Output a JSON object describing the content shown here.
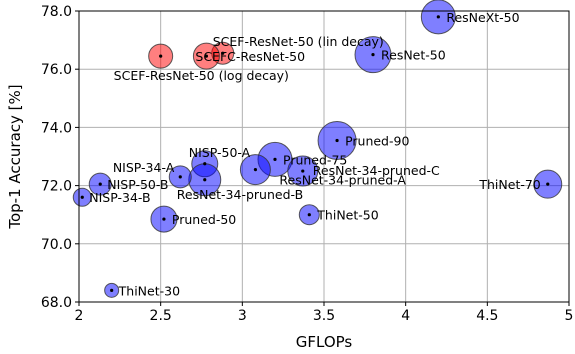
{
  "chart_data": {
    "type": "scatter",
    "xlabel": "GFLOPs",
    "ylabel": "Top-1 Accuracy [%]",
    "xlim": [
      2,
      5
    ],
    "ylim": [
      68,
      78
    ],
    "grid": true,
    "x_ticks": [
      "2",
      "2.5",
      "3",
      "3.5",
      "4",
      "4.5",
      "5"
    ],
    "y_ticks": [
      "68.0",
      "70.0",
      "72.0",
      "74.0",
      "76.0",
      "78.0"
    ],
    "colors": {
      "baseline": "#0000ff",
      "scef": "#ff0000"
    },
    "points": [
      {
        "label": "ResNeXt-50",
        "x": 4.2,
        "y": 77.8,
        "group": "baseline",
        "radius": 17
      },
      {
        "label": "ResNet-50",
        "x": 3.8,
        "y": 76.5,
        "group": "baseline",
        "radius": 18
      },
      {
        "label": "SCEF-ResNet-50 (lin decay)",
        "x": 2.88,
        "y": 76.55,
        "group": "scef",
        "radius": 11
      },
      {
        "label": "SCEFC-ResNet-50",
        "x": 2.78,
        "y": 76.45,
        "group": "scef",
        "radius": 13
      },
      {
        "label": "SCEF-ResNet-50 (log decay)",
        "x": 2.5,
        "y": 76.45,
        "group": "scef",
        "radius": 12
      },
      {
        "label": "Pruned-90",
        "x": 3.58,
        "y": 73.55,
        "group": "baseline",
        "radius": 19
      },
      {
        "label": "NISP-50-A",
        "x": 2.77,
        "y": 72.75,
        "group": "baseline",
        "radius": 13
      },
      {
        "label": "Pruned-75",
        "x": 3.2,
        "y": 72.9,
        "group": "baseline",
        "radius": 17
      },
      {
        "label": "ResNet-34-pruned-C",
        "x": 3.37,
        "y": 72.5,
        "group": "baseline",
        "radius": 15
      },
      {
        "label": "ResNet-34-pruned-A",
        "x": 3.08,
        "y": 72.55,
        "group": "baseline",
        "radius": 15
      },
      {
        "label": "ResNet-34-pruned-B",
        "x": 2.77,
        "y": 72.2,
        "group": "baseline",
        "radius": 16
      },
      {
        "label": "NISP-34-A",
        "x": 2.62,
        "y": 72.3,
        "group": "baseline",
        "radius": 11
      },
      {
        "label": "NISP-50-B",
        "x": 2.13,
        "y": 72.05,
        "group": "baseline",
        "radius": 11
      },
      {
        "label": "NISP-34-B",
        "x": 2.02,
        "y": 71.6,
        "group": "baseline",
        "radius": 9
      },
      {
        "label": "ThiNet-70",
        "x": 4.87,
        "y": 72.05,
        "group": "baseline",
        "radius": 14
      },
      {
        "label": "ThiNet-50",
        "x": 3.41,
        "y": 71.0,
        "group": "baseline",
        "radius": 10
      },
      {
        "label": "Pruned-50",
        "x": 2.52,
        "y": 70.85,
        "group": "baseline",
        "radius": 13
      },
      {
        "label": "ThiNet-30",
        "x": 2.2,
        "y": 68.4,
        "group": "baseline",
        "radius": 7
      }
    ]
  }
}
